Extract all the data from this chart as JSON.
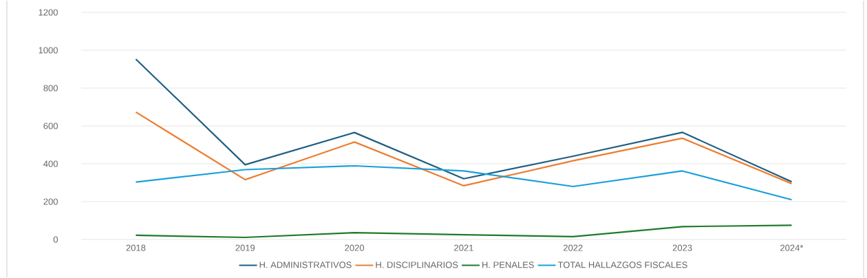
{
  "chart_data": {
    "type": "line",
    "categories": [
      "2018",
      "2019",
      "2020",
      "2021",
      "2022",
      "2023",
      "2024*"
    ],
    "series": [
      {
        "name": "H. ADMINISTRATIVOS",
        "color": "#1f5f82",
        "values": [
          953,
          395,
          565,
          321,
          440,
          566,
          305
        ]
      },
      {
        "name": "H. DISCIPLINARIOS",
        "color": "#ed7d31",
        "values": [
          673,
          316,
          515,
          284,
          416,
          535,
          295
        ]
      },
      {
        "name": "H. PENALES",
        "color": "#1e7a2a",
        "values": [
          22,
          11,
          36,
          25,
          15,
          68,
          75
        ]
      },
      {
        "name": "TOTAL HALLAZGOS FISCALES",
        "color": "#1a9fdc",
        "values": [
          303,
          369,
          389,
          362,
          280,
          362,
          210
        ]
      }
    ],
    "ylim": [
      0,
      1200
    ],
    "yticks": [
      0,
      200,
      400,
      600,
      800,
      1000,
      1200
    ],
    "grid": "y",
    "legend": "bottom",
    "marker": "none",
    "line_style": "solid"
  }
}
